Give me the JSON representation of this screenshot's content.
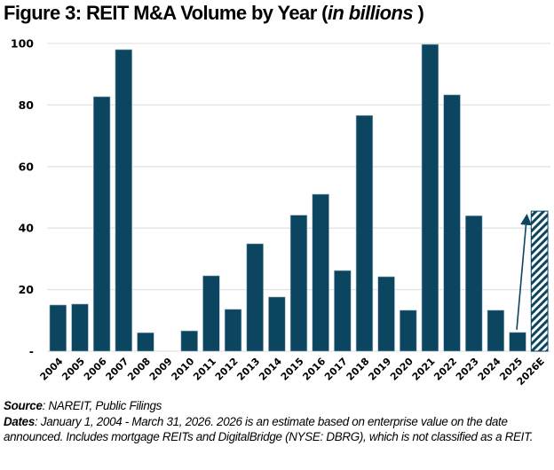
{
  "title": {
    "main": "Figure 3: REIT M&A Volume by Year (",
    "italic": "in billions",
    "close": " )"
  },
  "notes": {
    "source_label": "Source",
    "source_text": ": NAREIT, Public Filings",
    "dates_label": "Dates",
    "dates_text": ": January 1, 2004 - March 31, 2026.  2026 is an estimate based on enterprise value on the date announced.  Includes mortgage REITs and DigitalBridge (NYSE: DBRG), which is not classified as a REIT."
  },
  "colors": {
    "bar": "#0b4560",
    "bar_edge": "#ffffff",
    "grid": "#e3e3e3",
    "estimate_hatch": "#0b4560",
    "arrow": "#0b4560"
  },
  "chart_data": {
    "type": "bar",
    "title": "Figure 3: REIT M&A Volume by Year (in billions)",
    "xlabel": "",
    "ylabel": "",
    "ylim": [
      0,
      100
    ],
    "yticks": [
      0,
      20,
      40,
      60,
      80,
      100
    ],
    "ytick_labels": [
      "-",
      "20",
      "40",
      "60",
      "80",
      "100"
    ],
    "grid": true,
    "legend": "none",
    "categories": [
      "2004",
      "2005",
      "2006",
      "2007",
      "2008",
      "2009",
      "2010",
      "2011",
      "2012",
      "2013",
      "2014",
      "2015",
      "2016",
      "2017",
      "2018",
      "2019",
      "2020",
      "2021",
      "2022",
      "2023",
      "2024",
      "2025",
      "2026E"
    ],
    "values": [
      15.0,
      15.3,
      82.7,
      98.0,
      6.0,
      0,
      6.6,
      24.5,
      13.6,
      34.9,
      17.6,
      44.2,
      51.0,
      26.2,
      76.6,
      24.2,
      13.3,
      99.7,
      83.3,
      44.0,
      13.3,
      6.1,
      45.5
    ],
    "estimated": [
      "2026E"
    ],
    "annotations": [
      {
        "type": "arrow",
        "from_category": "2025",
        "from_value": 6.1,
        "to_category": "2025",
        "to_value": 44,
        "description": "arrow pointing up from 2025 bar toward 2026E estimate"
      }
    ]
  }
}
